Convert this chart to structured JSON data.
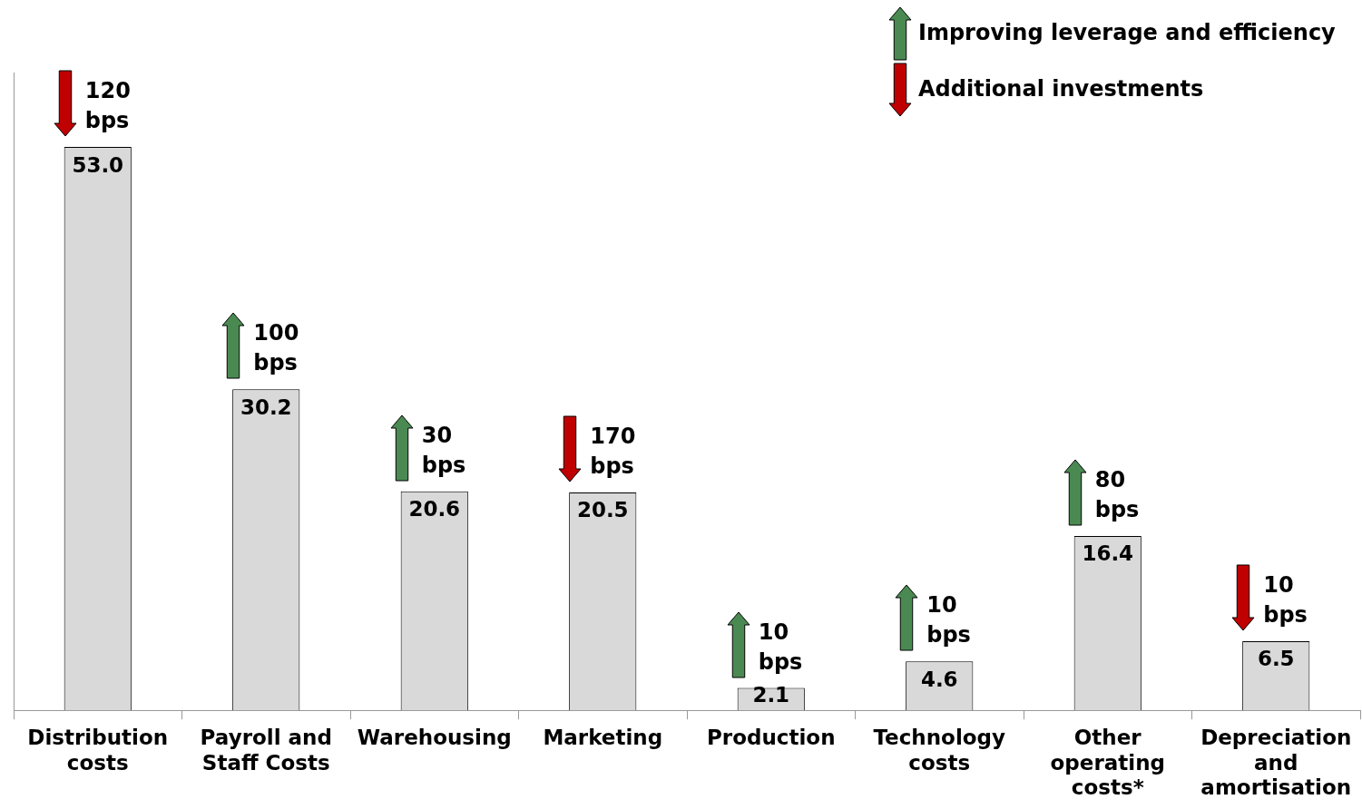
{
  "chart_data": {
    "type": "bar",
    "categories": [
      "Distribution costs",
      "Payroll and Staff Costs",
      "Warehousing",
      "Marketing",
      "Production",
      "Technology costs",
      "Other operating costs*",
      "Depreciation and amortisation"
    ],
    "values": [
      53.0,
      30.2,
      20.6,
      20.5,
      2.1,
      4.6,
      16.4,
      6.5
    ],
    "color": "#d9d9d9",
    "tick_labels": "x",
    "value_labels": [
      "53.0",
      "30.2",
      "20.6",
      "20.5",
      "2.1",
      "4.6",
      "16.4",
      "6.5"
    ],
    "grid": false,
    "legend": false,
    "annotations": [
      {
        "text": "120 bps",
        "x": "Distribution costs",
        "y": 53.0
      },
      {
        "text": "100 bps",
        "x": "Payroll and Staff Costs",
        "y": 30.2
      },
      {
        "text": "30 bps",
        "x": "Warehousing",
        "y": 20.6
      },
      {
        "text": "170 bps",
        "x": "Marketing",
        "y": 20.5
      },
      {
        "text": "10 bps",
        "x": "Production",
        "y": 2.1
      },
      {
        "text": "10 bps",
        "x": "Technology costs",
        "y": 4.6
      },
      {
        "text": "80 bps",
        "x": "Other operating costs*",
        "y": 16.4
      },
      {
        "text": "10 bps",
        "x": "Depreciation and amortisation",
        "y": 6.5
      },
      "Improving leverage and efficiency",
      "Additional investments"
    ]
  }
}
